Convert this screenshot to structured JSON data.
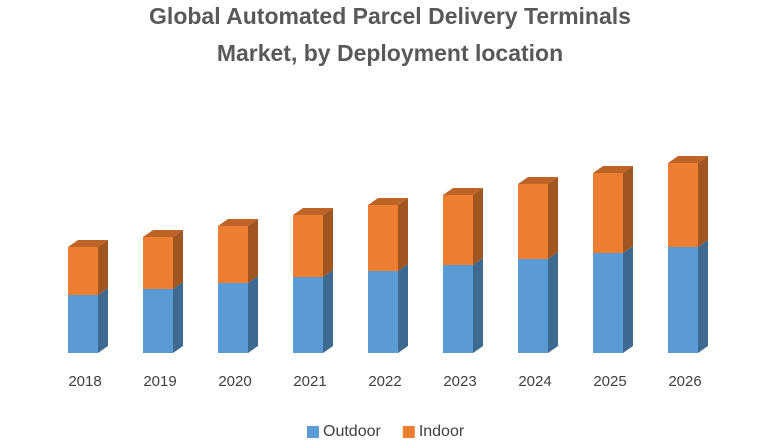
{
  "chart_data": {
    "type": "bar",
    "stacked": true,
    "title": [
      "Global Automated Parcel Delivery Terminals",
      "Market, by Deployment location"
    ],
    "categories": [
      "2018",
      "2019",
      "2020",
      "2021",
      "2022",
      "2023",
      "2024",
      "2025",
      "2026"
    ],
    "series": [
      {
        "name": "Outdoor",
        "color": "#5b9bd5",
        "values": [
          58,
          64,
          70,
          76,
          82,
          88,
          94,
          100,
          106
        ]
      },
      {
        "name": "Indoor",
        "color": "#ed7d31",
        "values": [
          48,
          52,
          57,
          62,
          66,
          70,
          75,
          80,
          84
        ]
      }
    ],
    "ylim": [
      0,
      200
    ],
    "legend": "bottom"
  }
}
